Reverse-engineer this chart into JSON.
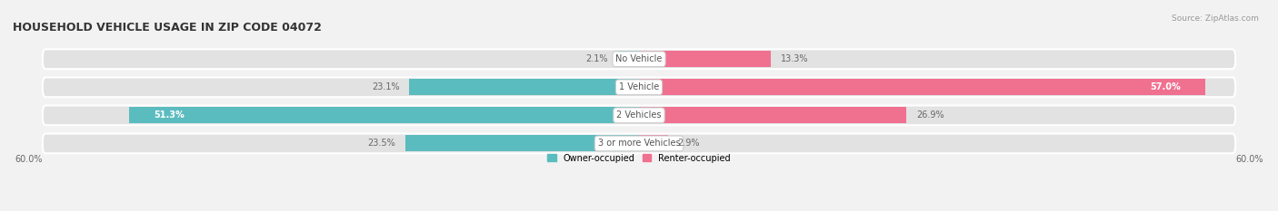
{
  "title": "HOUSEHOLD VEHICLE USAGE IN ZIP CODE 04072",
  "source": "Source: ZipAtlas.com",
  "categories": [
    "No Vehicle",
    "1 Vehicle",
    "2 Vehicles",
    "3 or more Vehicles"
  ],
  "owner_values": [
    2.1,
    23.1,
    51.3,
    23.5
  ],
  "renter_values": [
    13.3,
    57.0,
    26.9,
    2.9
  ],
  "owner_color": "#5bbcbf",
  "renter_color": "#f07090",
  "owner_label": "Owner-occupied",
  "renter_label": "Renter-occupied",
  "axis_limit": 60.0,
  "axis_label_left": "60.0%",
  "axis_label_right": "60.0%",
  "bg_color": "#f2f2f2",
  "bar_bg_color": "#e2e2e2",
  "label_color_dark": "#666666",
  "label_color_white": "#ffffff",
  "title_color": "#333333",
  "category_label_color": "#555555",
  "bar_height": 0.58,
  "figsize": [
    14.06,
    2.33
  ],
  "dpi": 100
}
